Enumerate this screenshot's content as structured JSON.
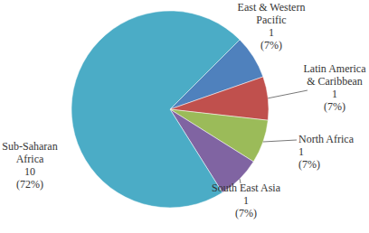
{
  "chart_data": {
    "type": "pie",
    "categories": [
      "East & Western Pacific",
      "Latin America & Caribbean",
      "North Africa",
      "South East Asia",
      "Sub-Saharan Africa"
    ],
    "values": [
      1,
      1,
      1,
      1,
      10
    ],
    "percent_labels": [
      "(7%)",
      "(7%)",
      "(7%)",
      "(7%)",
      "(72%)"
    ],
    "colors": [
      "#4F81BD",
      "#C0504D",
      "#9BBB59",
      "#8064A2",
      "#4BACC6"
    ],
    "data_labels": true
  }
}
